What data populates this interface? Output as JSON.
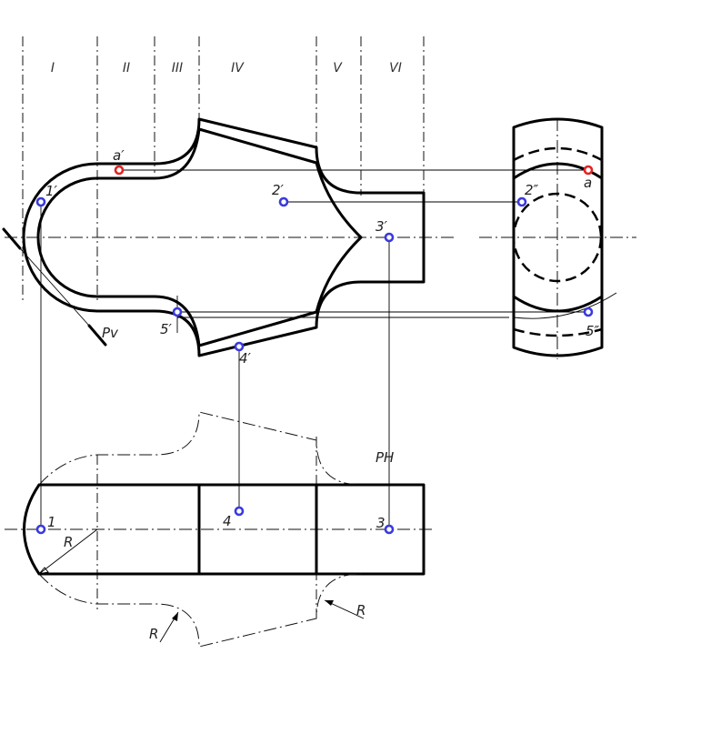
{
  "zones": [
    "I",
    "II",
    "III",
    "IV",
    "V",
    "VI"
  ],
  "point_labels": {
    "a_front": "a′",
    "a_side": "a",
    "p1_front": "1′",
    "p2_front": "2′",
    "p2_side": "2″",
    "p3_front": "3′",
    "p4_front": "4′",
    "p5_front": "5′",
    "p5_side": "5″",
    "p1_top": "1",
    "p3_top": "3",
    "p4_top": "4"
  },
  "plane_labels": {
    "pv": "Pv",
    "ph": "PH"
  },
  "radius_label": "R",
  "colors": {
    "blue_point": "#3a3adf",
    "red_point": "#e02525",
    "line": "#000000"
  }
}
